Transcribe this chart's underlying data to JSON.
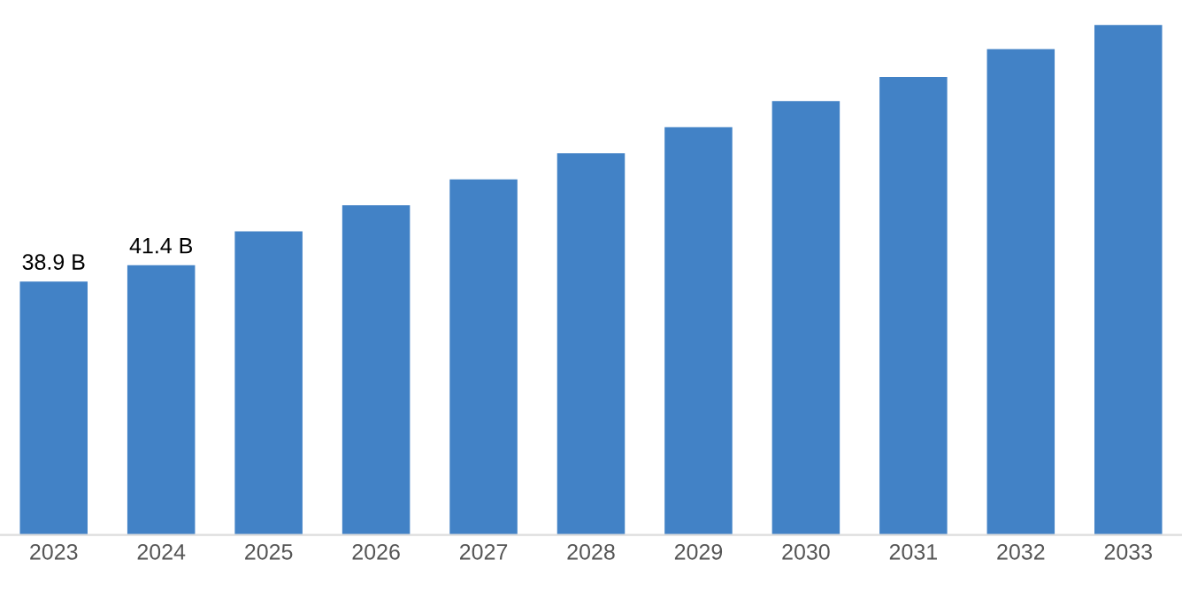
{
  "chart_data": {
    "type": "bar",
    "categories": [
      "2023",
      "2024",
      "2025",
      "2026",
      "2027",
      "2028",
      "2029",
      "2030",
      "2031",
      "2032",
      "2033"
    ],
    "values": [
      38.9,
      41.4,
      46.6,
      50.6,
      54.6,
      58.6,
      62.6,
      66.6,
      70.3,
      74.6,
      78.3
    ],
    "value_labels": [
      "38.9 B",
      "41.4 B",
      null,
      null,
      null,
      null,
      null,
      null,
      null,
      null,
      null
    ],
    "color": "#4282c6",
    "grid": false,
    "legend": false
  }
}
